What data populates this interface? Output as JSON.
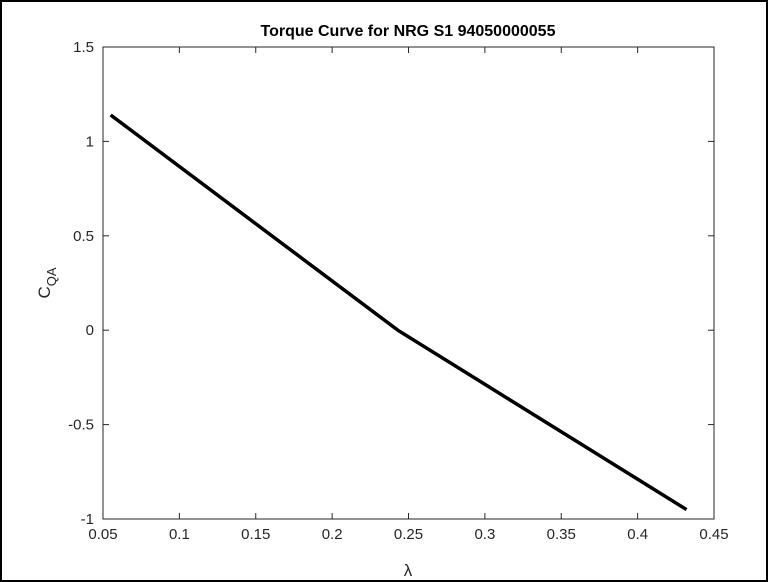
{
  "chart_data": {
    "type": "line",
    "title": "Torque Curve for NRG S1 94050000055",
    "xlabel": "λ",
    "ylabel": {
      "main": "C",
      "subscript": "QA"
    },
    "x": [
      0.055,
      0.243,
      0.432
    ],
    "series": [
      {
        "color": "#000000",
        "values": [
          1.14,
          0,
          -0.95
        ]
      }
    ],
    "xlim": [
      0.05,
      0.45
    ],
    "xticks": [
      0.05,
      0.1,
      0.15,
      0.2,
      0.25,
      0.3,
      0.35,
      0.4,
      0.45
    ],
    "ylim": [
      -1,
      1.5
    ],
    "yticks": [
      -1,
      -0.5,
      0,
      0.5,
      1,
      1.5
    ],
    "grid": false
  }
}
